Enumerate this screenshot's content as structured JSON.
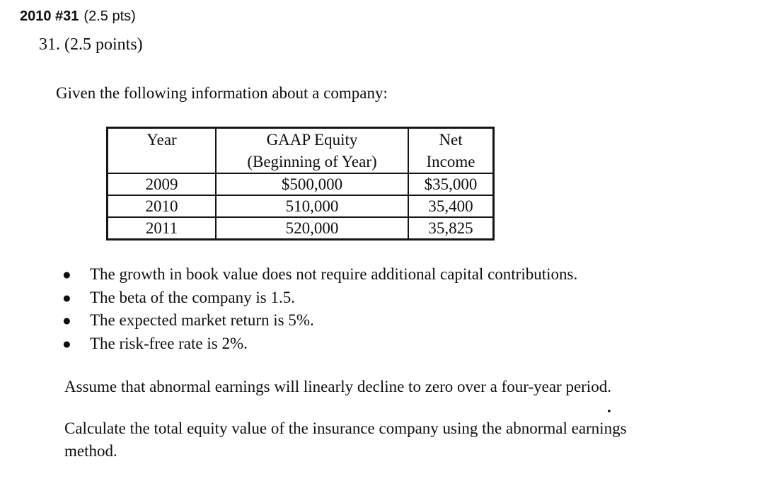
{
  "page": {
    "header_bold": "2010 #31",
    "header_rest": "(2.5 pts)",
    "problem_number": "31. (2.5 points)",
    "intro": "Given the following information about a company:",
    "assume": "Assume that abnormal earnings will linearly decline to zero over a four-year period.",
    "calculate_lines": {
      "0": "Calculate the total equity value of the insurance company using the abnormal earnings",
      "1": "method."
    },
    "stray_mark": "."
  },
  "table": {
    "headers": {
      "year": "Year",
      "gaap_equity": "GAAP Equity\n(Beginning of Year)",
      "net_income": "Net\nIncome"
    },
    "rows": [
      [
        "2009",
        "$500,000",
        "$35,000"
      ],
      [
        "2010",
        "510,000",
        "35,400"
      ],
      [
        "2011",
        "520,000",
        "35,825"
      ]
    ]
  },
  "bullets": [
    "The growth in book value does not require additional capital contributions.",
    "The beta of the company is 1.5.",
    "The expected market return is 5%.",
    "The risk-free rate is 2%."
  ],
  "bullet_glyph": "●",
  "colors": {
    "ink": "#0f0f0f",
    "paper": "#ffffff"
  }
}
